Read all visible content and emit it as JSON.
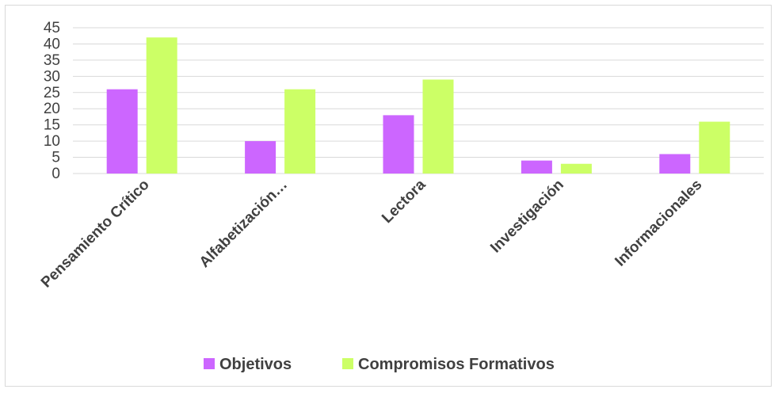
{
  "chart_data": {
    "type": "bar",
    "categories": [
      "Pensamiento Crítico",
      "Alfabetización…",
      "Lectora",
      "Investigación",
      "Informacionales"
    ],
    "series": [
      {
        "name": "Objetivos",
        "values": [
          26,
          10,
          18,
          4,
          6
        ],
        "color": "#cc66ff"
      },
      {
        "name": "Compromisos Formativos",
        "values": [
          42,
          26,
          29,
          3,
          16
        ],
        "color": "#ccff66"
      }
    ],
    "ylim": [
      0,
      45
    ],
    "yticks": [
      0,
      5,
      10,
      15,
      20,
      25,
      30,
      35,
      40,
      45
    ],
    "grid": true,
    "legend_position": "bottom",
    "colors": {
      "gridline": "#d9d9d9",
      "axis_text": "#404040",
      "border": "#d9d9d9"
    }
  }
}
